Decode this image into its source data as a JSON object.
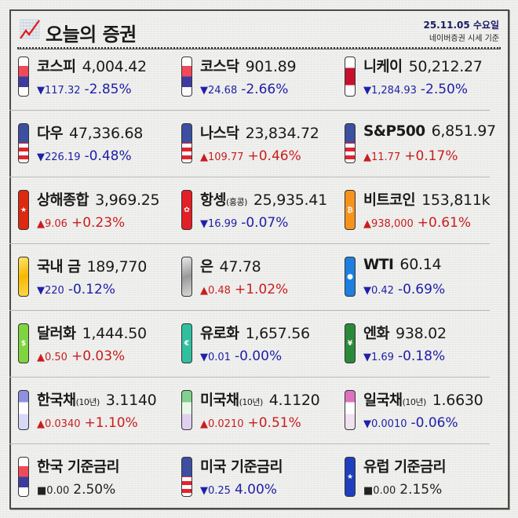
{
  "header": {
    "title": "오늘의 증권",
    "logo_icon": "chart-up-icon",
    "date": "25.11.05 수요일",
    "source": "네이버증권 시세 기준"
  },
  "colors": {
    "down": "#2020a8",
    "up": "#c81e1e",
    "flat": "#222222",
    "frame": "#4a4a46"
  },
  "rows": [
    [
      {
        "name": "코스피",
        "sub": "",
        "value": "4,004.42",
        "dir": "down",
        "symbol": "▼",
        "delta": "117.32",
        "pct": "-2.85%",
        "icon": "korea-flag-icon"
      },
      {
        "name": "코스닥",
        "sub": "",
        "value": "901.89",
        "dir": "down",
        "symbol": "▼",
        "delta": "24.68",
        "pct": "-2.66%",
        "icon": "korea-flag-icon"
      },
      {
        "name": "니케이",
        "sub": "",
        "value": "50,212.27",
        "dir": "down",
        "symbol": "▼",
        "delta": "1,284.93",
        "pct": "-2.50%",
        "icon": "japan-flag-icon"
      }
    ],
    [
      {
        "name": "다우",
        "sub": "",
        "value": "47,336.68",
        "dir": "down",
        "symbol": "▼",
        "delta": "226.19",
        "pct": "-0.48%",
        "icon": "us-flag-icon"
      },
      {
        "name": "나스닥",
        "sub": "",
        "value": "23,834.72",
        "dir": "up",
        "symbol": "▲",
        "delta": "109.77",
        "pct": "+0.46%",
        "icon": "us-flag-icon"
      },
      {
        "name": "S&P500",
        "sub": "",
        "value": "6,851.97",
        "dir": "up",
        "symbol": "▲",
        "delta": "11.77",
        "pct": "+0.17%",
        "icon": "us-flag-icon"
      }
    ],
    [
      {
        "name": "상해종합",
        "sub": "",
        "value": "3,969.25",
        "dir": "up",
        "symbol": "▲",
        "delta": "9.06",
        "pct": "+0.23%",
        "icon": "china-flag-icon"
      },
      {
        "name": "항셍",
        "sub": "(홍콩)",
        "value": "25,935.41",
        "dir": "down",
        "symbol": "▼",
        "delta": "16.99",
        "pct": "-0.07%",
        "icon": "hongkong-flag-icon"
      },
      {
        "name": "비트코인",
        "sub": "",
        "value": "153,811k",
        "dir": "up",
        "symbol": "▲",
        "delta": "938,000",
        "pct": "+0.61%",
        "icon": "bitcoin-icon"
      }
    ],
    [
      {
        "name": "국내 금",
        "sub": "",
        "value": "189,770",
        "dir": "down",
        "symbol": "▼",
        "delta": "220",
        "pct": "-0.12%",
        "icon": "gold-bar-icon"
      },
      {
        "name": "은",
        "sub": "",
        "value": "47.78",
        "dir": "up",
        "symbol": "▲",
        "delta": "0.48",
        "pct": "+1.02%",
        "icon": "silver-bar-icon"
      },
      {
        "name": "WTI",
        "sub": "",
        "value": "60.14",
        "dir": "down",
        "symbol": "▼",
        "delta": "0.42",
        "pct": "-0.69%",
        "icon": "oil-drop-icon"
      }
    ],
    [
      {
        "name": "달러화",
        "sub": "",
        "value": "1,444.50",
        "dir": "up",
        "symbol": "▲",
        "delta": "0.50",
        "pct": "+0.03%",
        "icon": "dollar-bill-icon"
      },
      {
        "name": "유로화",
        "sub": "",
        "value": "1,657.56",
        "dir": "down",
        "symbol": "▼",
        "delta": "0.01",
        "pct": "-0.00%",
        "icon": "euro-bill-icon"
      },
      {
        "name": "엔화",
        "sub": "",
        "value": "938.02",
        "dir": "down",
        "symbol": "▼",
        "delta": "1.69",
        "pct": "-0.18%",
        "icon": "yen-bill-icon"
      }
    ],
    [
      {
        "name": "한국채",
        "sub": "(10년)",
        "value": "3.1140",
        "dir": "up",
        "symbol": "▲",
        "delta": "0.0340",
        "pct": "+1.10%",
        "icon": "korea-bond-icon"
      },
      {
        "name": "미국채",
        "sub": "(10년)",
        "value": "4.1120",
        "dir": "up",
        "symbol": "▲",
        "delta": "0.0210",
        "pct": "+0.51%",
        "icon": "us-bond-icon"
      },
      {
        "name": "일국채",
        "sub": "(10년)",
        "value": "1.6630",
        "dir": "down",
        "symbol": "▼",
        "delta": "0.0010",
        "pct": "-0.06%",
        "icon": "japan-bond-icon"
      }
    ],
    [
      {
        "name": "한국 기준금리",
        "sub": "",
        "value": "",
        "dir": "flat",
        "symbol": "■",
        "delta": "0.00",
        "pct": "2.50%",
        "icon": "korea-flag-icon"
      },
      {
        "name": "미국 기준금리",
        "sub": "",
        "value": "",
        "dir": "down",
        "symbol": "▼",
        "delta": "0.25",
        "pct": "4.00%",
        "icon": "us-flag-icon"
      },
      {
        "name": "유럽 기준금리",
        "sub": "",
        "value": "",
        "dir": "flat",
        "symbol": "■",
        "delta": "0.00",
        "pct": "2.15%",
        "icon": "eu-flag-icon"
      }
    ]
  ]
}
